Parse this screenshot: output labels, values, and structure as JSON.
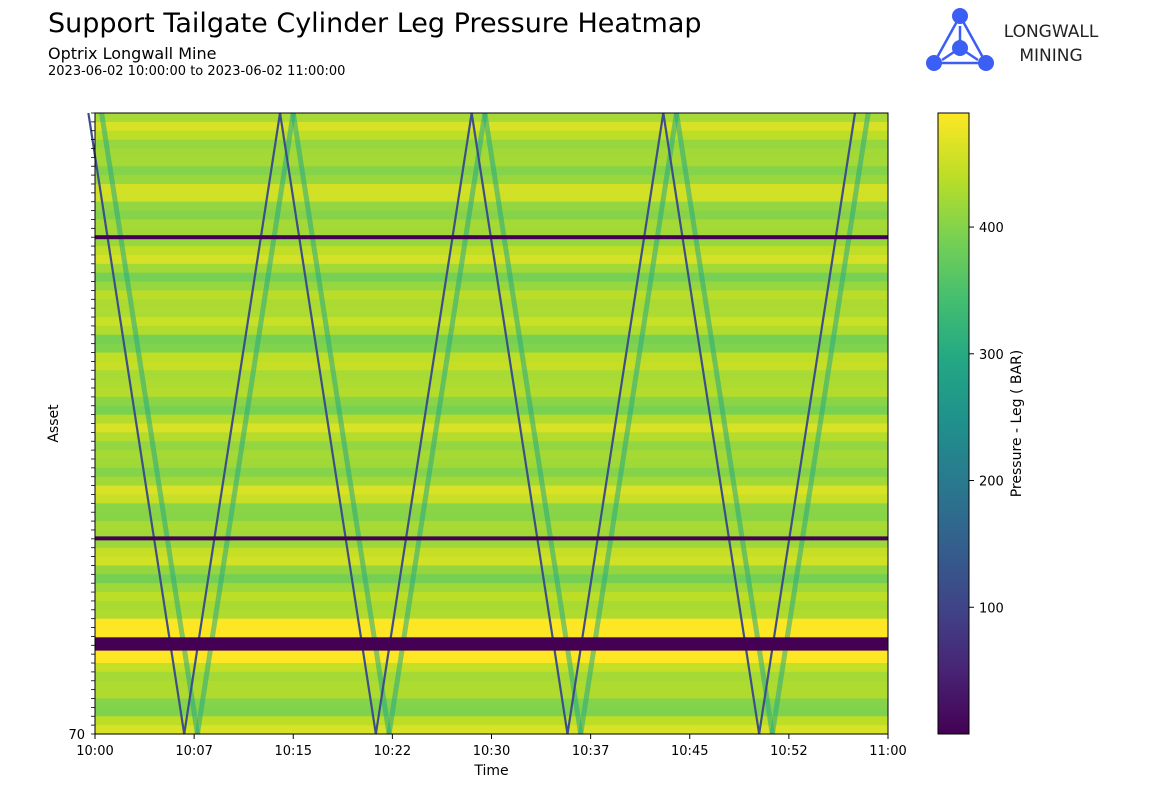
{
  "header": {
    "title": "Support Tailgate Cylinder Leg Pressure Heatmap",
    "subtitle": "Optrix Longwall Mine",
    "date_range": "2023-06-02 10:00:00 to 2023-06-02 11:00:00"
  },
  "logo": {
    "line1": "LONGWALL",
    "line2": "MINING",
    "color": "#3b5ef5"
  },
  "chart_data": {
    "type": "heatmap",
    "xlabel": "Time",
    "ylabel": "Asset",
    "colorbar_label": "Pressure - Leg ( BAR)",
    "colormap": "viridis",
    "x_tick_labels": [
      "10:00",
      "10:07",
      "10:15",
      "10:22",
      "10:30",
      "10:37",
      "10:45",
      "10:52",
      "11:00"
    ],
    "x_range_minutes": [
      0,
      60
    ],
    "y_labeled_tick": "70",
    "asset_count": 70,
    "color_range": [
      0,
      490
    ],
    "colorbar_ticks": [
      100,
      200,
      300,
      400
    ],
    "baseline_pressure_range": [
      385,
      465
    ],
    "low_pressure_rows": [
      {
        "asset_fraction_from_top": 0.2,
        "pressure": 0
      },
      {
        "asset_fraction_from_top": 0.685,
        "pressure": 0
      },
      {
        "asset_fraction_from_top": 0.855,
        "pressure": 0,
        "note": "band of rows"
      }
    ],
    "high_pressure_rows_near": 0.85,
    "shearer_pass_minutes": [
      0,
      14.5,
      29,
      43.5,
      58
    ]
  }
}
